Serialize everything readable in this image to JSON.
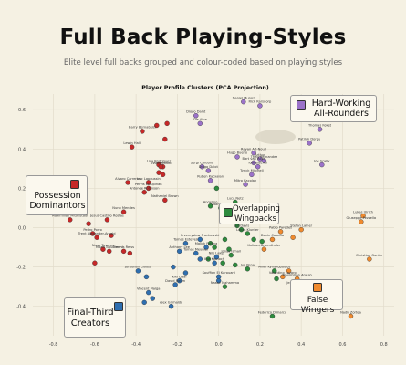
{
  "header": {
    "title": "Full Back Playing-Styles",
    "subtitle": "Elite level full backs grouped and colour-coded based on playing styles"
  },
  "legend": {
    "hard_working": "Hard-Working All-Rounders",
    "possession": "Possession Dominantors",
    "overlapping": "Overlapping Wingbacks",
    "final_third": "Final-Third Creators",
    "false_wingers": "False Wingers"
  },
  "colors": {
    "possession": "#c62828",
    "hard_working": "#9b72c9",
    "overlapping": "#2e8b3e",
    "final_third": "#2f6fb0",
    "false_wingers": "#ef8a2e"
  },
  "chart_data": {
    "type": "scatter",
    "title": "Player Profile Clusters (PCA Projection)",
    "xlim": [
      -0.9,
      0.85
    ],
    "ylim": [
      -0.55,
      0.68
    ],
    "x_ticks": [
      "-0.8",
      "-0.6",
      "-0.4",
      "-0.2",
      "0.0",
      "0.2",
      "0.4",
      "0.6",
      "0.8"
    ],
    "y_ticks": [
      "0.6",
      "0.4",
      "0.2",
      "0.0",
      "-0.2",
      "-0.4"
    ],
    "grid": true,
    "series": [
      {
        "name": "Hard-Working All-Rounders",
        "color_key": "hard_working",
        "points": [
          {
            "x": 0.12,
            "y": 0.64,
            "label": "Daniel Munoz"
          },
          {
            "x": 0.2,
            "y": 0.62,
            "label": "Rick Karsdorp"
          },
          {
            "x": -0.11,
            "y": 0.57,
            "label": "Diogo Dalot"
          },
          {
            "x": -0.09,
            "y": 0.53,
            "label": "Ola Aina"
          },
          {
            "x": 0.49,
            "y": 0.5,
            "label": "Thomas Foket"
          },
          {
            "x": 0.44,
            "y": 0.43,
            "label": "Patrick Dorgu"
          },
          {
            "x": 0.17,
            "y": 0.38,
            "label": "Rayan Ait-Nouri"
          },
          {
            "x": 0.09,
            "y": 0.36,
            "label": "Hugo Bueno"
          },
          {
            "x": 0.2,
            "y": 0.35,
            "label": "Arthur"
          },
          {
            "x": 0.22,
            "y": 0.34,
            "label": "Theo Hernandez"
          },
          {
            "x": 0.17,
            "y": 0.33,
            "label": "Bart van Rooij"
          },
          {
            "x": 0.5,
            "y": 0.32,
            "label": "Joe Scally"
          },
          {
            "x": -0.08,
            "y": 0.31,
            "label": "Sergi Cardona"
          },
          {
            "x": 0.19,
            "y": 0.31,
            "label": "Tom Bischof"
          },
          {
            "x": -0.05,
            "y": 0.29,
            "label": "Diogo Dalot"
          },
          {
            "x": 0.16,
            "y": 0.27,
            "label": "Tyrick Mitchell"
          },
          {
            "x": -0.04,
            "y": 0.24,
            "label": "Ruben Kacxalan"
          },
          {
            "x": 0.13,
            "y": 0.22,
            "label": "Mitro Kacolan"
          }
        ]
      },
      {
        "name": "Possession Dominantors",
        "color_key": "possession",
        "points": [
          {
            "x": -0.37,
            "y": 0.49,
            "label": "Barry Bernabeisi"
          },
          {
            "x": -0.42,
            "y": 0.41,
            "label": "Lewin Hall"
          },
          {
            "x": -0.3,
            "y": 0.52,
            "label": ""
          },
          {
            "x": -0.25,
            "y": 0.53,
            "label": ""
          },
          {
            "x": -0.26,
            "y": 0.45,
            "label": ""
          },
          {
            "x": -0.29,
            "y": 0.32,
            "label": "Lola Rodriguez"
          },
          {
            "x": -0.27,
            "y": 0.31,
            "label": "Jude Bessel"
          },
          {
            "x": -0.28,
            "y": 0.31,
            "label": "Jude Bonds"
          },
          {
            "x": -0.29,
            "y": 0.28,
            "label": ""
          },
          {
            "x": -0.27,
            "y": 0.27,
            "label": ""
          },
          {
            "x": -0.44,
            "y": 0.23,
            "label": "Alvaro Carreras"
          },
          {
            "x": -0.34,
            "y": 0.23,
            "label": "Loic Lapoussin"
          },
          {
            "x": -0.34,
            "y": 0.2,
            "label": "Pervis Estupinan"
          },
          {
            "x": -0.36,
            "y": 0.18,
            "label": "Antonee Robinson"
          },
          {
            "x": -0.46,
            "y": 0.08,
            "label": "Nuno Mendes"
          },
          {
            "x": -0.26,
            "y": 0.14,
            "label": "Nathaniel Brown"
          },
          {
            "x": -0.72,
            "y": 0.04,
            "label": "Maximilian Mittelstadt"
          },
          {
            "x": -0.54,
            "y": 0.04,
            "label": "Jesus Castillo Rostas"
          },
          {
            "x": -0.63,
            "y": 0.02,
            "label": ""
          },
          {
            "x": -0.61,
            "y": -0.03,
            "label": "Pedro Porro"
          },
          {
            "x": -0.59,
            "y": -0.05,
            "label": "Trent Alexander-Arnold"
          },
          {
            "x": -0.52,
            "y": -0.04,
            "label": ""
          },
          {
            "x": -0.56,
            "y": -0.11,
            "label": "Nuno Tavares"
          },
          {
            "x": -0.53,
            "y": -0.12,
            "label": "Mazin Boulemmi"
          },
          {
            "x": -0.46,
            "y": -0.12,
            "label": "Dennis Reiss"
          },
          {
            "x": -0.43,
            "y": -0.13,
            "label": ""
          },
          {
            "x": -0.6,
            "y": -0.18,
            "label": ""
          }
        ]
      },
      {
        "name": "Overlapping Wingbacks",
        "color_key": "overlapping",
        "points": [
          {
            "x": -0.01,
            "y": 0.2,
            "label": ""
          },
          {
            "x": 0.08,
            "y": 0.13,
            "label": "Luca Netz"
          },
          {
            "x": -0.04,
            "y": 0.11,
            "label": "Angelino"
          },
          {
            "x": 0.01,
            "y": 0.1,
            "label": "Vitaly Janelt"
          },
          {
            "x": 0.11,
            "y": 0.08,
            "label": ""
          },
          {
            "x": 0.17,
            "y": 0.07,
            "label": ""
          },
          {
            "x": 0.05,
            "y": 0.03,
            "label": "Lucas Lucas"
          },
          {
            "x": 0.09,
            "y": 0.01,
            "label": ""
          },
          {
            "x": 0.11,
            "y": -0.01,
            "label": "Leif Davis"
          },
          {
            "x": 0.14,
            "y": -0.03,
            "label": "Lukas Klunter"
          },
          {
            "x": 0.03,
            "y": -0.06,
            "label": ""
          },
          {
            "x": 0.21,
            "y": -0.07,
            "label": ""
          },
          {
            "x": -0.04,
            "y": -0.08,
            "label": ""
          },
          {
            "x": -0.02,
            "y": -0.1,
            "label": ""
          },
          {
            "x": 0.05,
            "y": -0.11,
            "label": ""
          },
          {
            "x": 0.17,
            "y": -0.06,
            "label": ""
          },
          {
            "x": 0.06,
            "y": -0.14,
            "label": "Jonas Ismail"
          },
          {
            "x": -0.05,
            "y": -0.16,
            "label": ""
          },
          {
            "x": 0.02,
            "y": -0.18,
            "label": ""
          },
          {
            "x": 0.08,
            "y": -0.19,
            "label": ""
          },
          {
            "x": 0.14,
            "y": -0.21,
            "label": "Ivo Pena"
          },
          {
            "x": 0.27,
            "y": -0.22,
            "label": "Mikel Kyriakopoulos"
          },
          {
            "x": 0.03,
            "y": -0.3,
            "label": "Nassir Mahamma"
          },
          {
            "x": 0.28,
            "y": -0.26,
            "label": ""
          },
          {
            "x": 0.26,
            "y": -0.45,
            "label": "Federico Dimarco"
          }
        ]
      },
      {
        "name": "Final-Third Creators",
        "color_key": "final_third",
        "points": [
          {
            "x": -0.09,
            "y": -0.06,
            "label": "Przemyslaw Frankowski"
          },
          {
            "x": -0.16,
            "y": -0.08,
            "label": "Tomas Esteves"
          },
          {
            "x": -0.06,
            "y": -0.1,
            "label": "Malick Fofana"
          },
          {
            "x": -0.19,
            "y": -0.12,
            "label": "Anthony Lee"
          },
          {
            "x": -0.11,
            "y": -0.13,
            "label": "Tomas Meunier"
          },
          {
            "x": -0.01,
            "y": -0.15,
            "label": "Nils Laker"
          },
          {
            "x": -0.09,
            "y": -0.16,
            "label": ""
          },
          {
            "x": -0.02,
            "y": -0.18,
            "label": "Ilya Kornoch"
          },
          {
            "x": -0.39,
            "y": -0.22,
            "label": "Jonathan Clauss"
          },
          {
            "x": -0.22,
            "y": -0.2,
            "label": ""
          },
          {
            "x": -0.16,
            "y": -0.23,
            "label": ""
          },
          {
            "x": -0.35,
            "y": -0.25,
            "label": ""
          },
          {
            "x": 0.0,
            "y": -0.25,
            "label": "Souffian El Karouani"
          },
          {
            "x": -0.19,
            "y": -0.27,
            "label": "Kiki Daaf"
          },
          {
            "x": -0.21,
            "y": -0.29,
            "label": "David Raum"
          },
          {
            "x": -0.34,
            "y": -0.33,
            "label": "Vincent Maiga"
          },
          {
            "x": -0.32,
            "y": -0.36,
            "label": ""
          },
          {
            "x": -0.36,
            "y": -0.38,
            "label": ""
          },
          {
            "x": -0.23,
            "y": -0.4,
            "label": "Alex Grimaldo"
          },
          {
            "x": 0.0,
            "y": -0.27,
            "label": ""
          }
        ]
      },
      {
        "name": "False Wingers",
        "color_key": "false_wingers",
        "points": [
          {
            "x": 0.7,
            "y": 0.06,
            "label": "Lukas Ulrich"
          },
          {
            "x": 0.69,
            "y": 0.03,
            "label": "Giuseppe Pezzella"
          },
          {
            "x": 0.4,
            "y": -0.01,
            "label": "Stefan Lainer"
          },
          {
            "x": 0.3,
            "y": -0.02,
            "label": "Pablo Paredes"
          },
          {
            "x": 0.36,
            "y": -0.05,
            "label": ""
          },
          {
            "x": 0.26,
            "y": -0.06,
            "label": "Devin Cabana"
          },
          {
            "x": 0.22,
            "y": -0.11,
            "label": "Kalidou Anzenthaler"
          },
          {
            "x": 0.73,
            "y": -0.16,
            "label": "Christian Gunter"
          },
          {
            "x": 0.34,
            "y": -0.22,
            "label": ""
          },
          {
            "x": 0.31,
            "y": -0.25,
            "label": "Valentino Lazaro"
          },
          {
            "x": 0.38,
            "y": -0.26,
            "label": "Maximilian Araujo"
          },
          {
            "x": 0.4,
            "y": -0.3,
            "label": "Jeremie Frimpong"
          },
          {
            "x": 0.36,
            "y": -0.32,
            "label": ""
          },
          {
            "x": 0.64,
            "y": -0.45,
            "label": "Nadir Zortea"
          }
        ]
      }
    ]
  }
}
